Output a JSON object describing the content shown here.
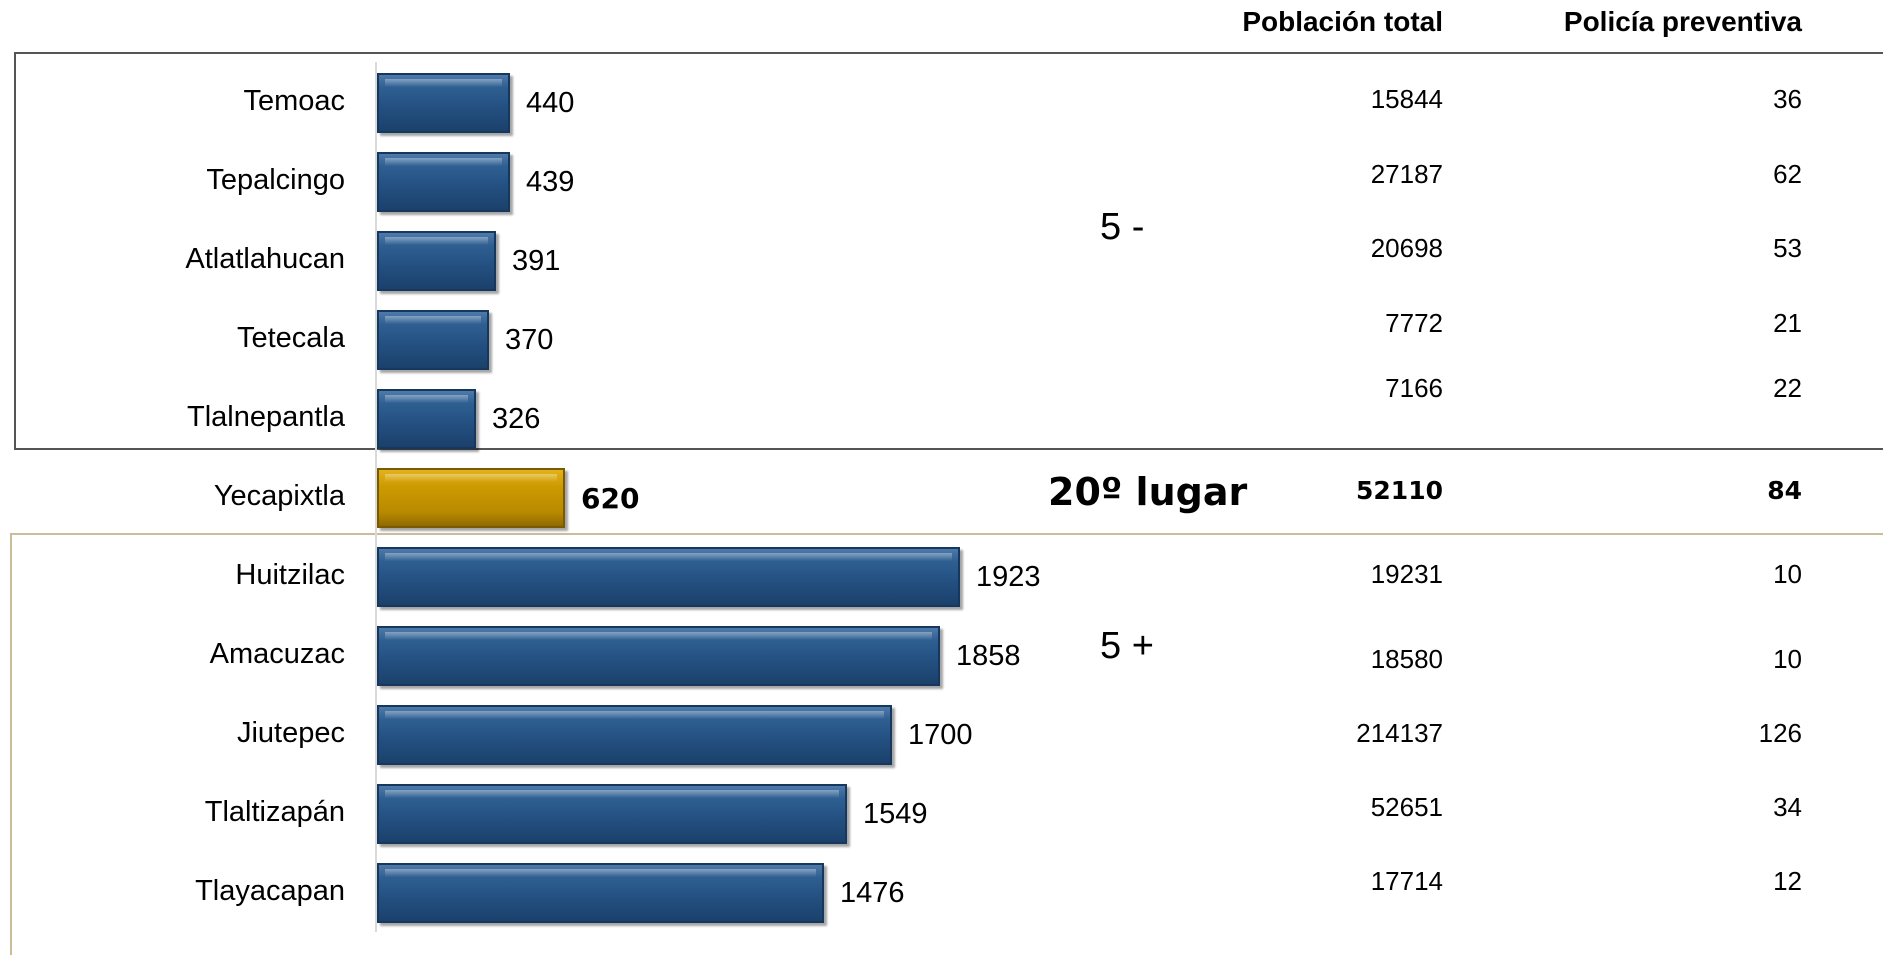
{
  "headers": {
    "poblacion": "Población total",
    "policia": "Policía preventiva"
  },
  "group_labels": {
    "bottom5": "5 -",
    "top5": "5 +",
    "rank": "20º lugar"
  },
  "colors": {
    "bar": "#2a5688",
    "highlight": "#cc9a00",
    "box_top_border": "#555555",
    "box_bottom_border": "#c9bd9a"
  },
  "chart_data": {
    "type": "bar",
    "orientation": "horizontal",
    "title": "",
    "xlabel": "",
    "ylabel": "",
    "xlim": [
      0,
      2500
    ],
    "grid": false,
    "categories": [
      "Temoac",
      "Tepalcingo",
      "Atlatlahucan",
      "Tetecala",
      "Tlalnepantla",
      "Yecapixtla",
      "Huitzilac",
      "Amacuzac",
      "Jiutepec",
      "Tlaltizapán",
      "Tlayacapan"
    ],
    "values": [
      440,
      439,
      391,
      370,
      326,
      620,
      1923,
      1858,
      1700,
      1549,
      1476
    ],
    "highlight": [
      "no",
      "no",
      "no",
      "no",
      "no",
      "yes",
      "no",
      "no",
      "no",
      "no",
      "no"
    ],
    "value_labels": [
      "440",
      "439",
      "391",
      "370",
      "326",
      "620",
      "1923",
      "1858",
      "1700",
      "1549",
      "1476"
    ]
  },
  "table": {
    "poblacion_total": [
      "15844",
      "27187",
      "20698",
      "7772",
      "7166",
      "52110",
      "19231",
      "18580",
      "214137",
      "52651",
      "17714"
    ],
    "policia_preventiva": [
      "36",
      "62",
      "53",
      "21",
      "22",
      "84",
      "10",
      "10",
      "126",
      "34",
      "12"
    ]
  }
}
